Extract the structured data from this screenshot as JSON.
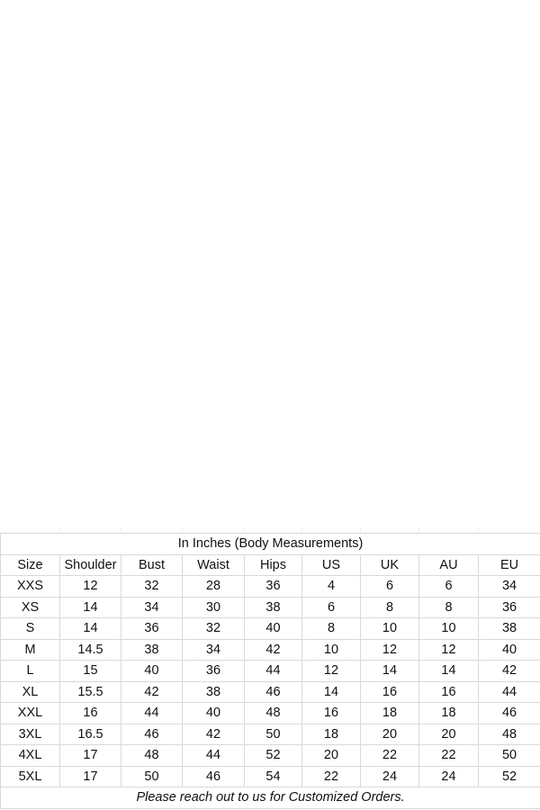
{
  "title": "In Inches (Body Measurements)",
  "headers": [
    "Size",
    "Shoulder",
    "Bust",
    "Waist",
    "Hips",
    "US",
    "UK",
    "AU",
    "EU"
  ],
  "rows": [
    [
      "XXS",
      "12",
      "32",
      "28",
      "36",
      "4",
      "6",
      "6",
      "34"
    ],
    [
      "XS",
      "14",
      "34",
      "30",
      "38",
      "6",
      "8",
      "8",
      "36"
    ],
    [
      "S",
      "14",
      "36",
      "32",
      "40",
      "8",
      "10",
      "10",
      "38"
    ],
    [
      "M",
      "14.5",
      "38",
      "34",
      "42",
      "10",
      "12",
      "12",
      "40"
    ],
    [
      "L",
      "15",
      "40",
      "36",
      "44",
      "12",
      "14",
      "14",
      "42"
    ],
    [
      "XL",
      "15.5",
      "42",
      "38",
      "46",
      "14",
      "16",
      "16",
      "44"
    ],
    [
      "XXL",
      "16",
      "44",
      "40",
      "48",
      "16",
      "18",
      "18",
      "46"
    ],
    [
      "3XL",
      "16.5",
      "46",
      "42",
      "50",
      "18",
      "20",
      "20",
      "48"
    ],
    [
      "4XL",
      "17",
      "48",
      "44",
      "52",
      "20",
      "22",
      "22",
      "50"
    ],
    [
      "5XL",
      "17",
      "50",
      "46",
      "54",
      "22",
      "24",
      "24",
      "52"
    ]
  ],
  "footer": "Please reach out to us for Customized Orders."
}
